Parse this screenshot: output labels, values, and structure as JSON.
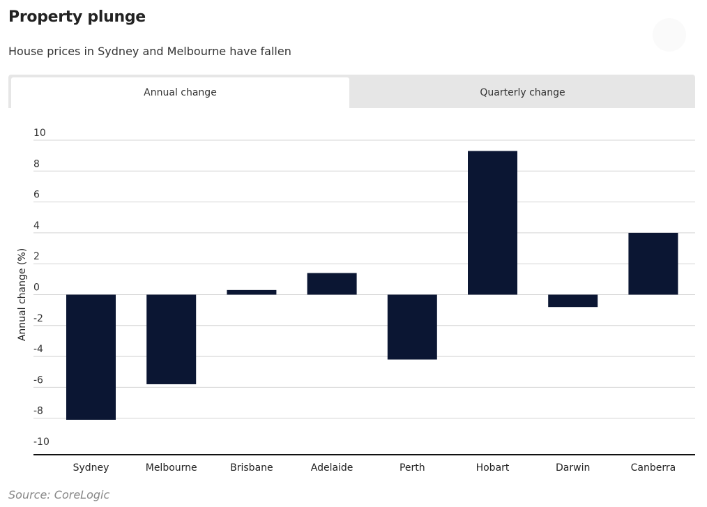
{
  "header": {
    "title": "Property plunge",
    "subtitle": "House prices in Sydney and Melbourne have fallen"
  },
  "tabs": [
    {
      "label": "Annual change",
      "active": true
    },
    {
      "label": "Quarterly change",
      "active": false
    }
  ],
  "chart_data": {
    "type": "bar",
    "categories": [
      "Sydney",
      "Melbourne",
      "Brisbane",
      "Adelaide",
      "Perth",
      "Hobart",
      "Darwin",
      "Canberra"
    ],
    "values": [
      -8.1,
      -5.8,
      0.3,
      1.4,
      -4.2,
      9.3,
      -0.8,
      4.0
    ],
    "ylabel": "Annual change (%)",
    "ylim": [
      -10,
      10
    ],
    "yticks": [
      10,
      8,
      6,
      4,
      2,
      0,
      -2,
      -4,
      -6,
      -8,
      -10
    ],
    "ytick_labels": [
      "10",
      "8",
      "6",
      "4",
      "2",
      "0",
      "-2",
      "-4",
      "-6",
      "-8",
      "-10"
    ],
    "grid": true,
    "bar_color": "#0b1633",
    "grid_color": "#d4d4d4"
  },
  "footer": {
    "source": "Source: CoreLogic"
  }
}
